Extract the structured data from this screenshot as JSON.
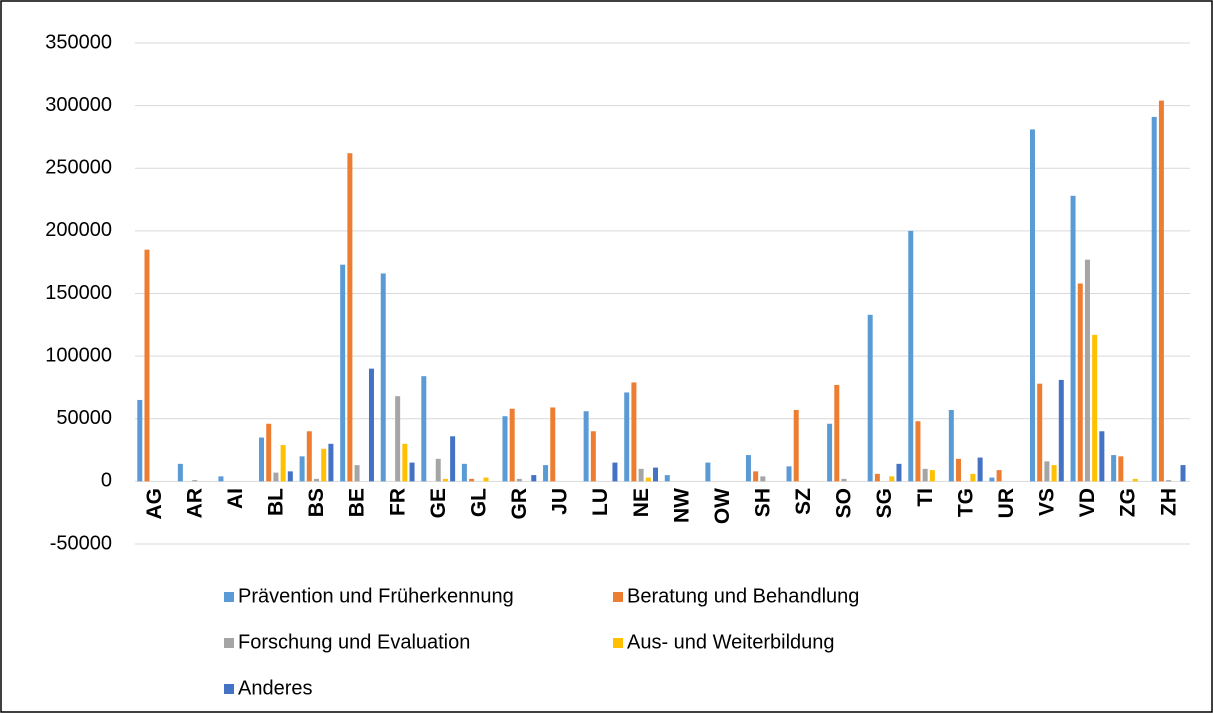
{
  "chart_data": {
    "type": "bar",
    "categories": [
      "AG",
      "AR",
      "AI",
      "BL",
      "BS",
      "BE",
      "FR",
      "GE",
      "GL",
      "GR",
      "JU",
      "LU",
      "NE",
      "NW",
      "OW",
      "SH",
      "SZ",
      "SO",
      "SG",
      "TI",
      "TG",
      "UR",
      "VS",
      "VD",
      "ZG",
      "ZH"
    ],
    "series": [
      {
        "name": "Prävention und Früherkennung",
        "color": "#5b9bd5",
        "values": [
          65000,
          14000,
          4000,
          35000,
          20000,
          173000,
          166000,
          84000,
          14000,
          52000,
          13000,
          56000,
          71000,
          5000,
          15000,
          21000,
          12000,
          46000,
          133000,
          200000,
          57000,
          3000,
          281000,
          228000,
          21000,
          291000
        ]
      },
      {
        "name": "Beratung und Behandlung",
        "color": "#ed7d31",
        "values": [
          185000,
          0,
          0,
          46000,
          40000,
          262000,
          0,
          0,
          2000,
          58000,
          59000,
          40000,
          79000,
          0,
          0,
          8000,
          57000,
          77000,
          6000,
          48000,
          18000,
          9000,
          78000,
          158000,
          20000,
          304000
        ]
      },
      {
        "name": "Forschung und Evaluation",
        "color": "#a5a5a5",
        "values": [
          0,
          1000,
          0,
          7000,
          2000,
          13000,
          68000,
          18000,
          0,
          2000,
          0,
          0,
          10000,
          0,
          0,
          4000,
          0,
          2000,
          0,
          10000,
          0,
          0,
          16000,
          177000,
          0,
          1000
        ]
      },
      {
        "name": "Aus- und Weiterbildung",
        "color": "#ffc000",
        "values": [
          0,
          0,
          0,
          29000,
          26000,
          0,
          30000,
          2000,
          3000,
          0,
          0,
          0,
          3000,
          0,
          0,
          0,
          0,
          0,
          4000,
          9000,
          6000,
          0,
          13000,
          117000,
          2000,
          0
        ]
      },
      {
        "name": "Anderes",
        "color": "#4472c4",
        "values": [
          0,
          0,
          0,
          8000,
          30000,
          90000,
          15000,
          36000,
          0,
          5000,
          0,
          15000,
          11000,
          0,
          0,
          0,
          0,
          0,
          14000,
          0,
          19000,
          0,
          81000,
          40000,
          0,
          13000
        ]
      }
    ],
    "ylim": [
      -50000,
      350000
    ],
    "yticks": [
      -50000,
      0,
      50000,
      100000,
      150000,
      200000,
      250000,
      300000,
      350000
    ],
    "grid": true
  }
}
